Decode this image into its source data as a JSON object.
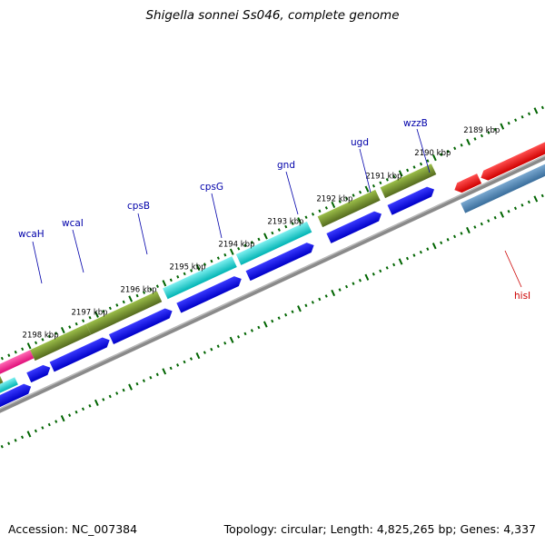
{
  "title": "Shigella sonnei Ss046, complete genome",
  "footer": {
    "accession": "Accession: NC_007384",
    "summary": "Topology: circular; Length: 4,825,265 bp; Genes: 4,337"
  },
  "ticks": [
    "2198 kbp",
    "2197 kbp",
    "2196 kbp",
    "2195 kbp",
    "2194 kbp",
    "2193 kbp",
    "2192 kbp",
    "2191 kbp",
    "2190 kbp",
    "2189 kbp"
  ],
  "genes": [
    {
      "name": "wcaH",
      "color": "#0000aa"
    },
    {
      "name": "wcaI",
      "color": "#0000aa"
    },
    {
      "name": "cpsB",
      "color": "#0000aa"
    },
    {
      "name": "cpsG",
      "color": "#0000aa"
    },
    {
      "name": "gnd",
      "color": "#0000aa"
    },
    {
      "name": "ugd",
      "color": "#0000aa"
    },
    {
      "name": "wzzB",
      "color": "#0000aa"
    },
    {
      "name": "hisI",
      "color": "#cc0000"
    }
  ],
  "colors": {
    "backbone": "#888888",
    "cds": "#0000ee",
    "olive": "#6b8e23",
    "cyan": "#00cccc",
    "magenta": "#ff1493",
    "red": "#ee0000",
    "steelblue": "#4682b4",
    "dots": "#006400"
  }
}
